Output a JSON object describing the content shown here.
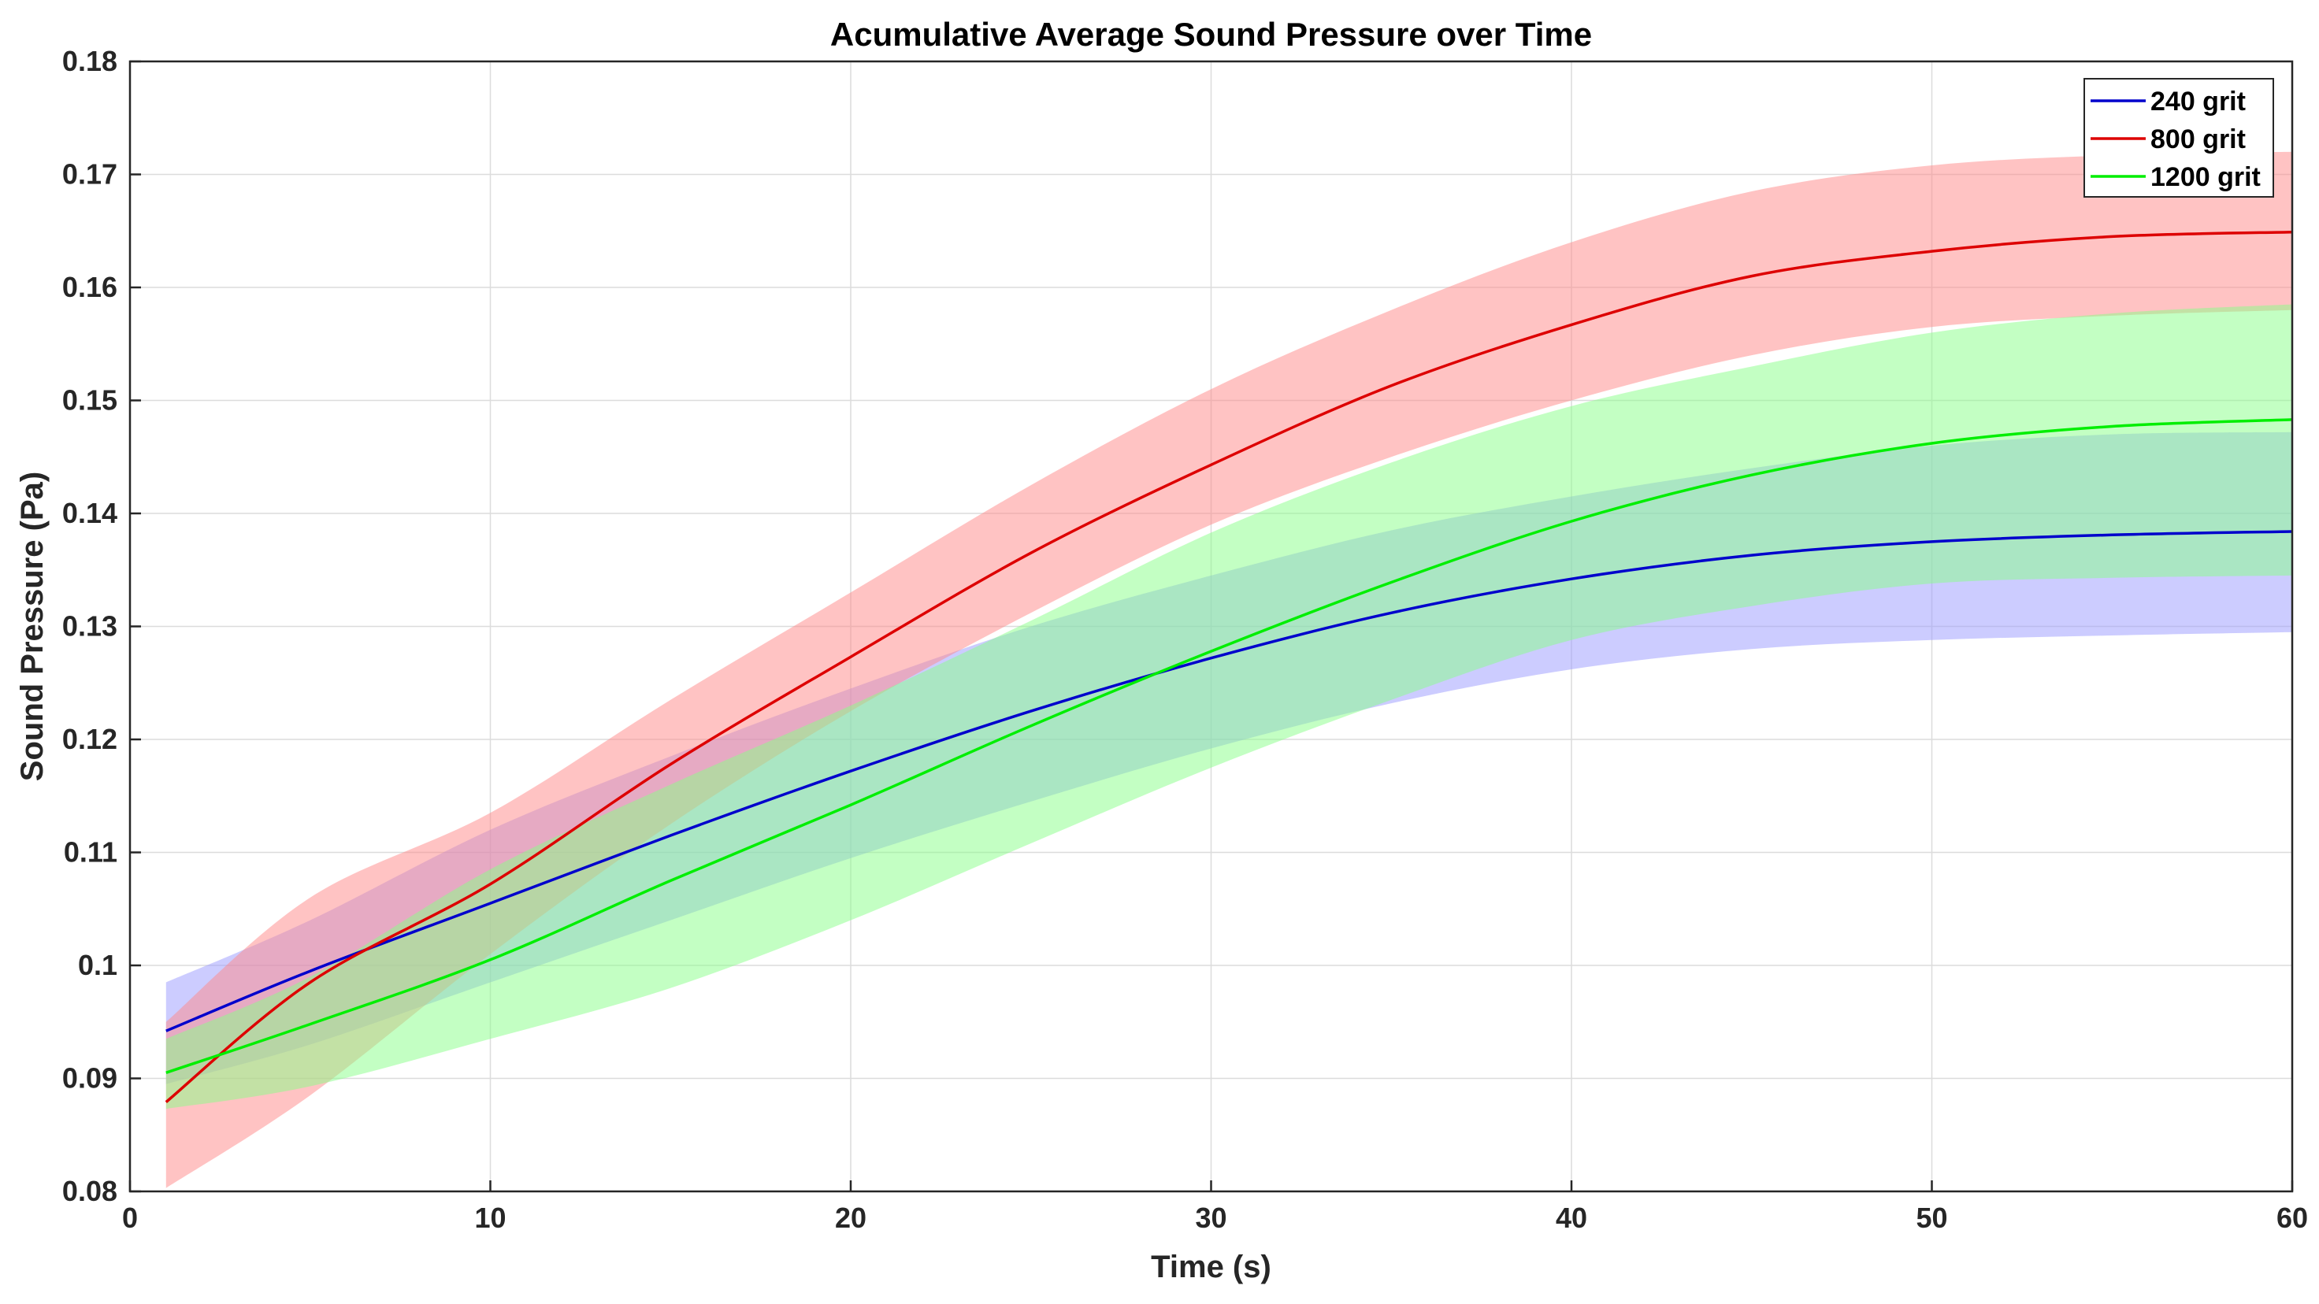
{
  "chart_data": {
    "type": "line",
    "title": "Acumulative Average Sound Pressure over Time",
    "xlabel": "Time (s)",
    "ylabel": "Sound Pressure (Pa)",
    "xlim": [
      0,
      60
    ],
    "ylim": [
      0.08,
      0.18
    ],
    "grid": true,
    "legend_position": "top-right",
    "x_ticks": [
      0,
      10,
      20,
      30,
      40,
      50,
      60
    ],
    "x_tick_labels": [
      "0",
      "10",
      "20",
      "30",
      "40",
      "50",
      "60"
    ],
    "y_ticks": [
      0.08,
      0.09,
      0.1,
      0.11,
      0.12,
      0.13,
      0.14,
      0.15,
      0.16,
      0.17,
      0.18
    ],
    "y_tick_labels": [
      "0.08",
      "0.09",
      "0.1",
      "0.11",
      "0.12",
      "0.13",
      "0.14",
      "0.15",
      "0.16",
      "0.17",
      "0.18"
    ],
    "x": [
      1,
      5,
      10,
      15,
      20,
      25,
      30,
      35,
      40,
      45,
      50,
      55,
      60
    ],
    "series": [
      {
        "name": "240 grit",
        "color": "#0000cc",
        "band_color": "#9999ff",
        "values": [
          0.0942,
          0.0995,
          0.1055,
          0.1115,
          0.1172,
          0.1225,
          0.1272,
          0.1312,
          0.1342,
          0.1363,
          0.1375,
          0.1381,
          0.1384
        ],
        "lower": [
          0.0895,
          0.093,
          0.0985,
          0.104,
          0.1095,
          0.1145,
          0.1192,
          0.1232,
          0.1262,
          0.128,
          0.1288,
          0.1292,
          0.1295
        ],
        "upper": [
          0.0985,
          0.104,
          0.112,
          0.1185,
          0.1245,
          0.13,
          0.1345,
          0.1385,
          0.1415,
          0.144,
          0.146,
          0.147,
          0.1472
        ]
      },
      {
        "name": "800 grit",
        "color": "#dd0000",
        "band_color": "#ff8888",
        "values": [
          0.0879,
          0.0985,
          0.1072,
          0.1178,
          0.1273,
          0.1365,
          0.1443,
          0.1513,
          0.1567,
          0.161,
          0.1632,
          0.1645,
          0.1649
        ],
        "lower": [
          0.0803,
          0.0885,
          0.101,
          0.1125,
          0.1225,
          0.1312,
          0.139,
          0.145,
          0.15,
          0.154,
          0.1565,
          0.1575,
          0.158
        ],
        "upper": [
          0.095,
          0.106,
          0.1135,
          0.1235,
          0.133,
          0.1425,
          0.151,
          0.158,
          0.164,
          0.1685,
          0.1708,
          0.1717,
          0.172
        ]
      },
      {
        "name": "1200 grit",
        "color": "#00ee00",
        "band_color": "#88ff88",
        "values": [
          0.0905,
          0.0948,
          0.1005,
          0.1075,
          0.1142,
          0.1212,
          0.1278,
          0.1339,
          0.1393,
          0.1434,
          0.1462,
          0.1477,
          0.1483
        ],
        "lower": [
          0.0873,
          0.0893,
          0.0935,
          0.098,
          0.104,
          0.1108,
          0.1175,
          0.1235,
          0.1288,
          0.1318,
          0.1338,
          0.1343,
          0.1345
        ],
        "upper": [
          0.0935,
          0.099,
          0.1085,
          0.116,
          0.123,
          0.1305,
          0.1383,
          0.1445,
          0.1495,
          0.153,
          0.156,
          0.1577,
          0.1585
        ]
      }
    ]
  }
}
